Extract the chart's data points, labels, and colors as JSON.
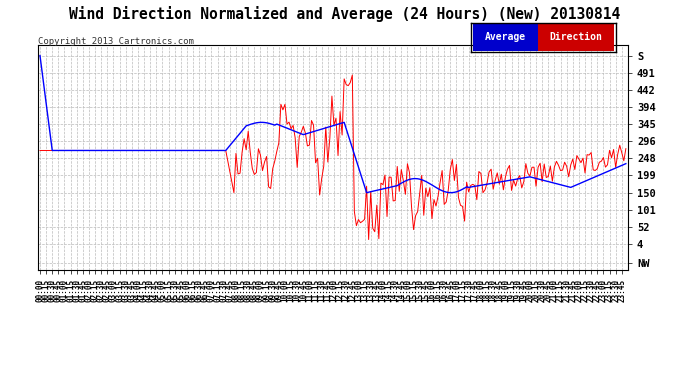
{
  "title": "Wind Direction Normalized and Average (24 Hours) (New) 20130814",
  "copyright": "Copyright 2013 Cartronics.com",
  "legend_labels": [
    "Average",
    "Direction"
  ],
  "avg_legend_bg": "#0000cc",
  "dir_legend_bg": "#cc0000",
  "ytick_labels": [
    "NW",
    "4",
    "52",
    "101",
    "150",
    "199",
    "248",
    "296",
    "345",
    "394",
    "442",
    "491",
    "S"
  ],
  "ytick_values": [
    -49,
    4,
    52,
    101,
    150,
    199,
    248,
    296,
    345,
    394,
    442,
    491,
    540
  ],
  "ylim": [
    -70,
    570
  ],
  "background_color": "#ffffff",
  "plot_bg_color": "#ffffff",
  "grid_color": "#bbbbbb",
  "avg_color": "#0000ff",
  "dir_color": "#ff0000",
  "title_fontsize": 12
}
